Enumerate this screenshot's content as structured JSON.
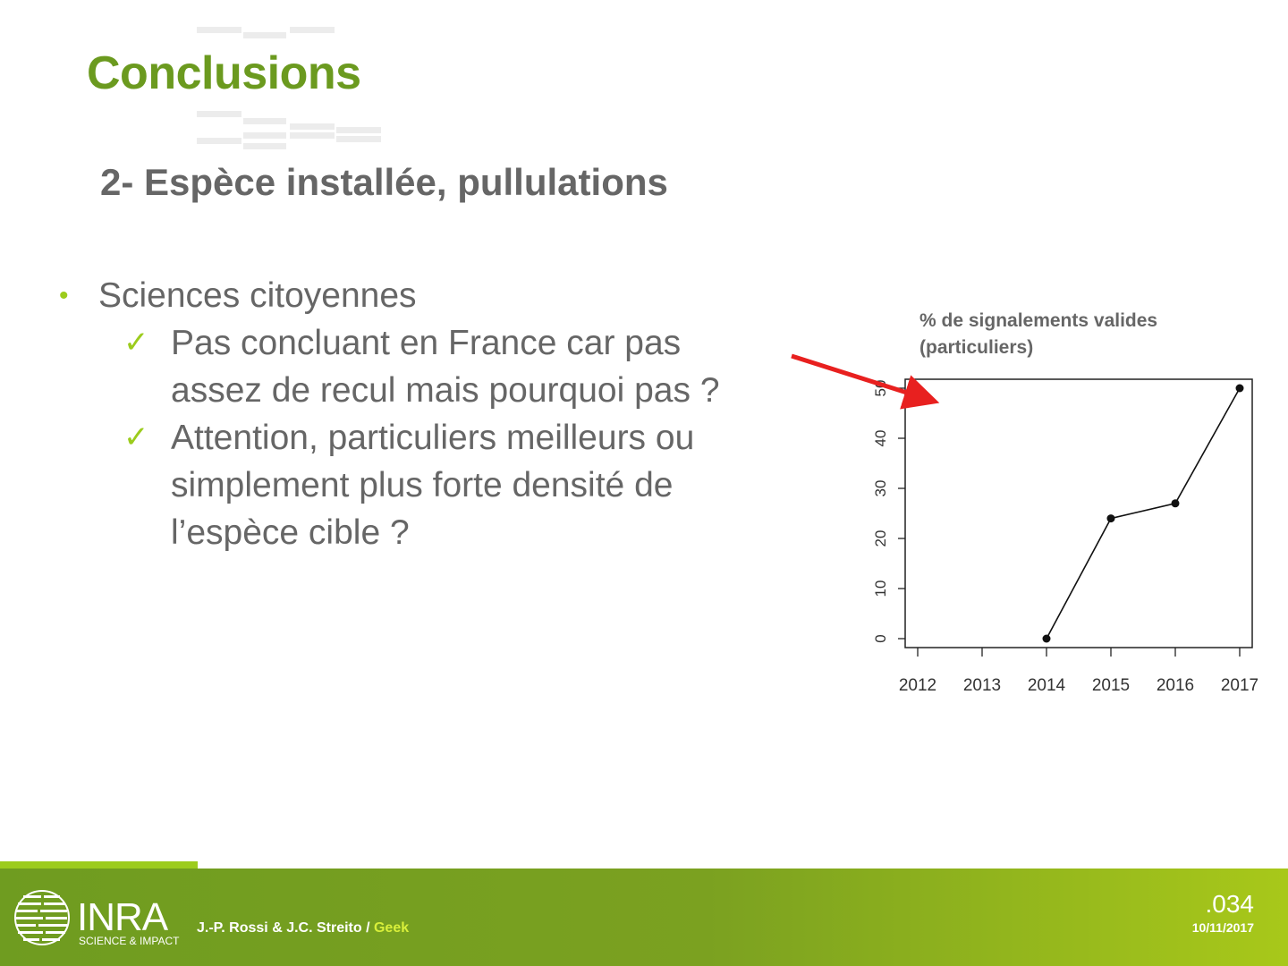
{
  "slide": {
    "title": "Conclusions",
    "subtitle": "2- Espèce installée, pullulations"
  },
  "content": {
    "bullet": "Sciences citoyennes",
    "checks": [
      [
        "Pas concluant en France car pas",
        "assez de recul mais pourquoi pas ?"
      ],
      [
        "Attention, particuliers meilleurs ou",
        "simplement plus forte densité de",
        "l’espèce cible ?"
      ]
    ]
  },
  "chart_data": {
    "type": "line",
    "title": "% de signalements valides (particuliers)",
    "title_lines": [
      "% de signalements valides",
      "(particuliers)"
    ],
    "x": [
      2014,
      2015,
      2016,
      2017
    ],
    "y": [
      0,
      24,
      27,
      50
    ],
    "xticks": [
      "2012",
      "2013",
      "2014",
      "2015",
      "2016",
      "2017"
    ],
    "yticks": [
      "0",
      "10",
      "20",
      "30",
      "40",
      "50"
    ],
    "xlim": [
      2012,
      2017
    ],
    "ylim": [
      0,
      50
    ],
    "grid": false,
    "legend": "none",
    "annotation": "red arrow pointing at the top-left of the plot"
  },
  "footer": {
    "logo_text": "INRA",
    "logo_tagline": "SCIENCE & IMPACT",
    "credits_authors": "J.-P. Rossi & J.C. Streito / ",
    "credits_highlight": "Geek",
    "page_number": ".034",
    "date": "10/11/2017"
  },
  "colors": {
    "title": "#6b9a1f",
    "text": "#666666",
    "accent": "#9ccc1d",
    "arrow": "#e8201f",
    "footer": "#7ba120"
  }
}
